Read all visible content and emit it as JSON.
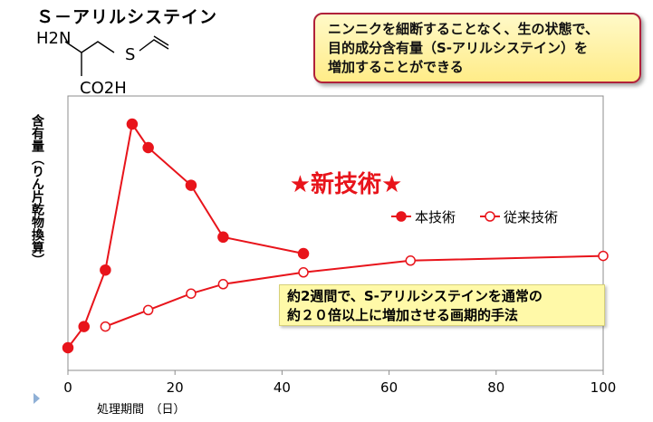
{
  "compound": {
    "title": "Ｓ－アリルシステイン",
    "h2n": "H2N",
    "s": "S",
    "co2h": "CO2H"
  },
  "callout": {
    "lines": [
      "ニンニクを細断することなく、生の状態で、",
      "目的成分含有量（S-アリルシステイン）を",
      "増加することができる"
    ]
  },
  "note": {
    "lines": [
      "約2週間で、S-アリルシステインを通常の",
      "約２０倍以上に増加させる画期的手法"
    ]
  },
  "chart_data": {
    "type": "line",
    "ylabel": "含有量（りん片乾物換算）",
    "xlabel": "処理期間　（日）",
    "xlim": [
      0,
      100
    ],
    "x_ticks": [
      0,
      20,
      40,
      60,
      80,
      100
    ],
    "annotation": "★新技術★",
    "legend_position": "right",
    "grid": false,
    "series": [
      {
        "name": "本技術",
        "marker": "filled-circle",
        "color": "#e8141b",
        "x": [
          0,
          3,
          7,
          12,
          15,
          23,
          29,
          44
        ],
        "y": [
          5,
          14,
          38,
          100,
          90,
          74,
          52,
          45
        ]
      },
      {
        "name": "従来技術",
        "marker": "open-circle",
        "color": "#e8141b",
        "x": [
          7,
          15,
          23,
          29,
          44,
          64,
          100
        ],
        "y": [
          14,
          21,
          28,
          32,
          37,
          42,
          44
        ]
      }
    ]
  }
}
